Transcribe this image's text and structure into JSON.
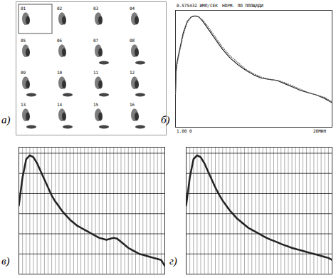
{
  "chart_data": [
    {
      "type": "image_grid",
      "title": "а)",
      "frames": [
        "01",
        "02",
        "03",
        "04",
        "05",
        "06",
        "07",
        "08",
        "09",
        "10",
        "11",
        "12",
        "13",
        "14",
        "15",
        "16"
      ]
    },
    {
      "type": "line",
      "title": "б)",
      "annotations": [
        "0.575432 ИМП/СЕК",
        "НОРМ. ПО ПЛОЩАДИ",
        "1.00 0",
        "20МИН"
      ],
      "x": [
        0,
        0.1,
        0.3,
        0.6,
        1,
        1.5,
        2,
        2.5,
        3,
        3.5,
        4,
        5,
        6,
        7,
        8,
        9,
        10,
        11,
        12,
        13,
        14,
        15,
        16,
        17,
        18,
        19,
        20
      ],
      "series": [
        {
          "color": "#222222",
          "line_style": "solid",
          "values": [
            0.3,
            0.55,
            0.62,
            0.72,
            0.85,
            0.95,
            0.99,
            1.0,
            0.99,
            0.95,
            0.9,
            0.8,
            0.7,
            0.62,
            0.56,
            0.51,
            0.47,
            0.44,
            0.43,
            0.42,
            0.39,
            0.36,
            0.33,
            0.31,
            0.29,
            0.26,
            0.22
          ]
        },
        {
          "color": "#666666",
          "line_style": "dotted",
          "values": [
            0.3,
            0.5,
            0.6,
            0.7,
            0.83,
            0.94,
            0.99,
            1.0,
            0.99,
            0.96,
            0.92,
            0.82,
            0.72,
            0.64,
            0.58,
            0.52,
            0.48,
            0.45,
            0.43,
            0.42,
            0.4,
            0.37,
            0.34,
            0.31,
            0.29,
            0.27,
            0.23
          ]
        }
      ],
      "xlim": [
        0,
        20
      ],
      "ylim": [
        0,
        1.05
      ],
      "tick_labels": false,
      "grid": false
    },
    {
      "type": "line",
      "title": "в)",
      "x": [
        0,
        1,
        2,
        3,
        4,
        5,
        6,
        7,
        8,
        9,
        10,
        11,
        12,
        13,
        14,
        15,
        16,
        17,
        18,
        19,
        20,
        21,
        22,
        23,
        24,
        25,
        26,
        27,
        28,
        29,
        30,
        31,
        32,
        33,
        34,
        35,
        36,
        37,
        38,
        39,
        40
      ],
      "values": [
        3.4,
        4.8,
        5.7,
        5.9,
        5.8,
        5.5,
        5.1,
        4.7,
        4.3,
        3.9,
        3.6,
        3.35,
        3.1,
        2.9,
        2.7,
        2.55,
        2.4,
        2.3,
        2.2,
        2.1,
        2.0,
        1.9,
        1.8,
        1.75,
        1.7,
        1.75,
        1.8,
        1.75,
        1.6,
        1.45,
        1.3,
        1.2,
        1.1,
        1.0,
        0.95,
        0.9,
        0.85,
        0.8,
        0.75,
        0.7,
        0.4
      ],
      "color": "#222222",
      "xlim": [
        0,
        40
      ],
      "ylim": [
        0,
        6.3
      ],
      "xticks": [
        0,
        1,
        2,
        3,
        4,
        5,
        6,
        7,
        8,
        9,
        10,
        11,
        12,
        13,
        14,
        15,
        16,
        17,
        18,
        19,
        20,
        21,
        22,
        23,
        24,
        25,
        26,
        27,
        28,
        29,
        30,
        31,
        32,
        33,
        34,
        35,
        36,
        37,
        38,
        39,
        40
      ],
      "yticks": [
        0,
        1,
        2,
        3,
        4,
        5,
        6
      ],
      "grid": true,
      "tick_labels": false
    },
    {
      "type": "line",
      "title": "г)",
      "x": [
        0,
        1,
        2,
        3,
        4,
        5,
        6,
        7,
        8,
        9,
        10,
        11,
        12,
        13,
        14,
        15,
        16,
        17,
        18,
        19,
        20,
        21,
        22,
        23,
        24,
        25,
        26,
        27,
        28,
        29,
        30,
        31,
        32,
        33,
        34,
        35,
        36,
        37,
        38,
        39,
        40
      ],
      "values": [
        3.4,
        4.8,
        5.7,
        5.9,
        5.8,
        5.5,
        5.1,
        4.7,
        4.3,
        3.95,
        3.65,
        3.4,
        3.15,
        2.95,
        2.75,
        2.6,
        2.45,
        2.3,
        2.2,
        2.1,
        2.0,
        1.9,
        1.8,
        1.72,
        1.65,
        1.58,
        1.5,
        1.43,
        1.37,
        1.3,
        1.25,
        1.2,
        1.15,
        1.1,
        1.05,
        1.0,
        0.95,
        0.9,
        0.85,
        0.8,
        0.7
      ],
      "color": "#222222",
      "xlim": [
        0,
        40
      ],
      "ylim": [
        0,
        6.3
      ],
      "xticks": [
        0,
        1,
        2,
        3,
        4,
        5,
        6,
        7,
        8,
        9,
        10,
        11,
        12,
        13,
        14,
        15,
        16,
        17,
        18,
        19,
        20,
        21,
        22,
        23,
        24,
        25,
        26,
        27,
        28,
        29,
        30,
        31,
        32,
        33,
        34,
        35,
        36,
        37,
        38,
        39,
        40
      ],
      "yticks": [
        0,
        1,
        2,
        3,
        4,
        5,
        6
      ],
      "grid": true,
      "tick_labels": false
    }
  ]
}
